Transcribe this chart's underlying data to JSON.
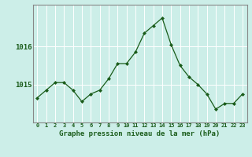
{
  "hours": [
    0,
    1,
    2,
    3,
    4,
    5,
    6,
    7,
    8,
    9,
    10,
    11,
    12,
    13,
    14,
    15,
    16,
    17,
    18,
    19,
    20,
    21,
    22,
    23
  ],
  "pressure": [
    1014.65,
    1014.85,
    1015.05,
    1015.05,
    1014.85,
    1014.55,
    1014.75,
    1014.85,
    1015.15,
    1015.55,
    1015.55,
    1015.85,
    1016.35,
    1016.55,
    1016.75,
    1016.05,
    1015.5,
    1015.2,
    1015.0,
    1014.75,
    1014.35,
    1014.5,
    1014.5,
    1014.75
  ],
  "line_color": "#1a5c1a",
  "marker_color": "#1a5c1a",
  "bg_color": "#cceee8",
  "grid_color": "#ffffff",
  "axis_label_color": "#1a5c1a",
  "tick_color": "#1a5c1a",
  "xlabel": "Graphe pression niveau de la mer (hPa)",
  "ylim": [
    1014.0,
    1017.1
  ],
  "yticks": [
    1015,
    1016
  ],
  "spine_color": "#888888"
}
